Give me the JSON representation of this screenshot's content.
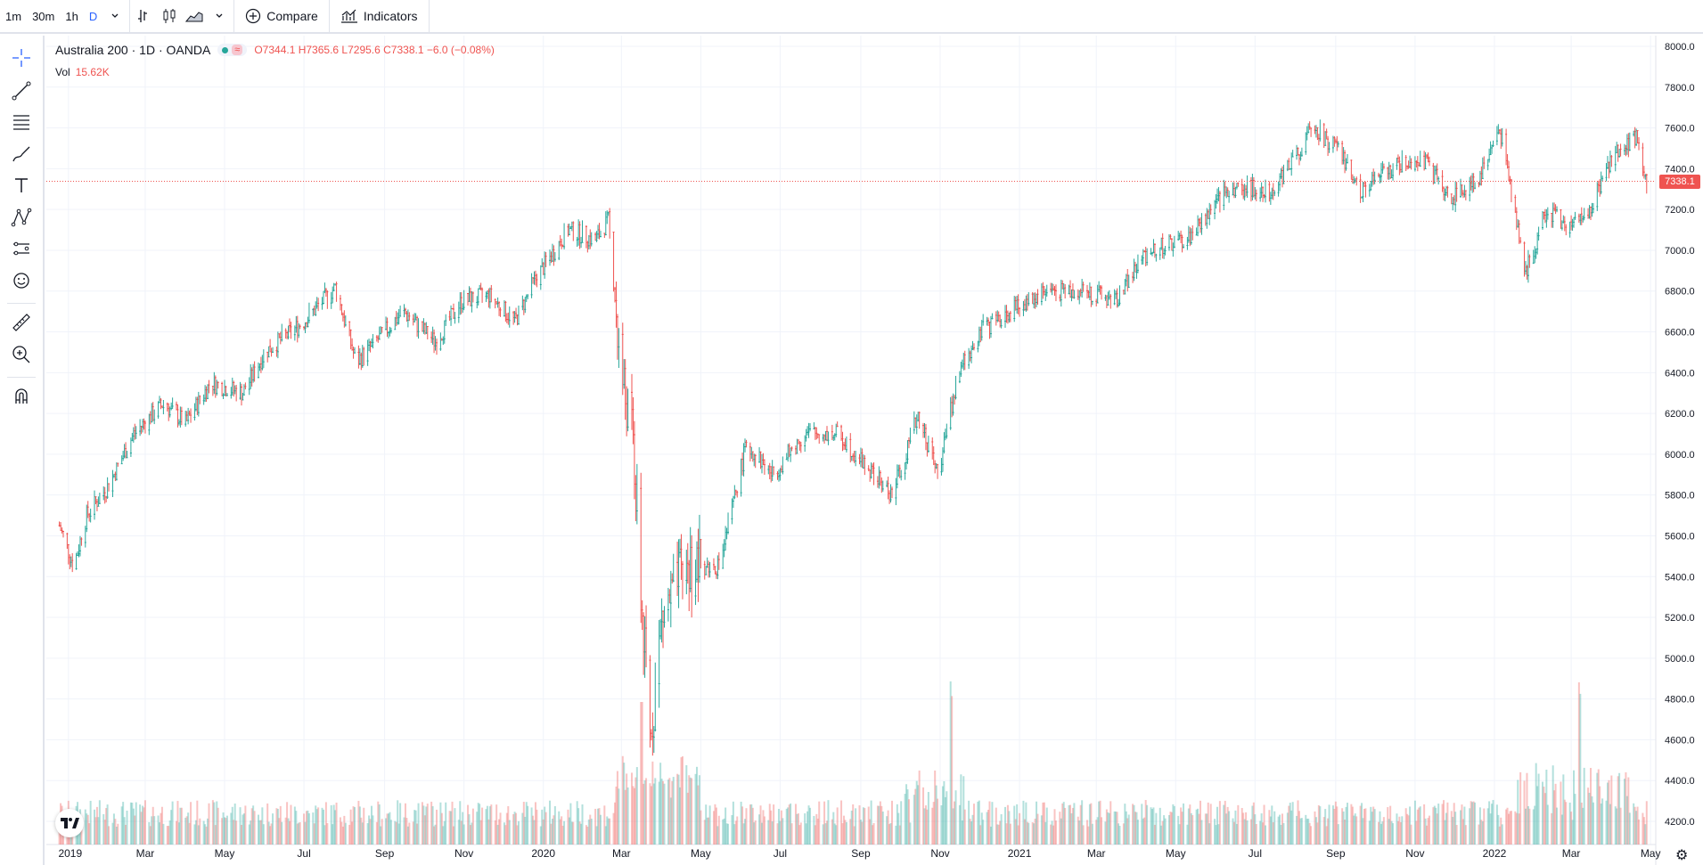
{
  "toolbar": {
    "intervals": [
      "1m",
      "30m",
      "1h",
      "D"
    ],
    "active_interval": "D",
    "compare_label": "Compare",
    "indicators_label": "Indicators"
  },
  "legend": {
    "symbol": "Australia 200 · 1D · OANDA",
    "ohlc": "O7344.1  H7365.6  L7295.6  C7338.1  −6.0 (−0.08%)",
    "vol_label": "Vol",
    "vol_value": "15.62K"
  },
  "last_price": "7338.1",
  "colors": {
    "up": "#26a69a",
    "down": "#ef5350",
    "grid": "#f0f3fa",
    "accent": "#2962ff"
  },
  "icons": [
    "crosshair-icon",
    "trend-line-icon",
    "fib-icon",
    "brush-icon",
    "text-icon",
    "pattern-icon",
    "prediction-icon",
    "emoji-icon",
    "ruler-icon",
    "zoom-icon",
    "magnet-icon"
  ],
  "chart_data": {
    "type": "candlestick",
    "title": "Australia 200 · 1D · OANDA",
    "ylim": [
      4100,
      8050
    ],
    "y_ticks": [
      "8000.0",
      "7800.0",
      "7600.0",
      "7400.0",
      "7200.0",
      "7000.0",
      "6800.0",
      "6600.0",
      "6400.0",
      "6200.0",
      "6000.0",
      "5800.0",
      "5600.0",
      "5400.0",
      "5200.0",
      "5000.0",
      "4800.0",
      "4600.0",
      "4400.0",
      "4200.0"
    ],
    "x_ticks": [
      "2019",
      "Mar",
      "May",
      "Jul",
      "Sep",
      "Nov",
      "2020",
      "Mar",
      "May",
      "Jul",
      "Sep",
      "Nov",
      "2021",
      "Mar",
      "May",
      "Jul",
      "Sep",
      "Nov",
      "2022",
      "Mar",
      "May"
    ],
    "x_tick_dates": [
      "2019-01-01",
      "2019-03-01",
      "2019-05-01",
      "2019-07-01",
      "2019-09-01",
      "2019-11-01",
      "2020-01-01",
      "2020-03-01",
      "2020-05-01",
      "2020-07-01",
      "2020-09-01",
      "2020-11-01",
      "2021-01-01",
      "2021-03-01",
      "2021-05-01",
      "2021-07-01",
      "2021-09-01",
      "2021-11-01",
      "2022-01-01",
      "2022-03-01",
      "2022-05-01"
    ],
    "close_series": [
      {
        "date": "2018-12-25",
        "value": 5650
      },
      {
        "date": "2019-01-05",
        "value": 5450
      },
      {
        "date": "2019-01-15",
        "value": 5700
      },
      {
        "date": "2019-02-01",
        "value": 5850
      },
      {
        "date": "2019-02-20",
        "value": 6100
      },
      {
        "date": "2019-03-15",
        "value": 6250
      },
      {
        "date": "2019-04-01",
        "value": 6150
      },
      {
        "date": "2019-04-20",
        "value": 6350
      },
      {
        "date": "2019-05-15",
        "value": 6300
      },
      {
        "date": "2019-06-01",
        "value": 6500
      },
      {
        "date": "2019-07-01",
        "value": 6650
      },
      {
        "date": "2019-07-25",
        "value": 6820
      },
      {
        "date": "2019-08-10",
        "value": 6450
      },
      {
        "date": "2019-08-25",
        "value": 6550
      },
      {
        "date": "2019-09-15",
        "value": 6700
      },
      {
        "date": "2019-10-10",
        "value": 6550
      },
      {
        "date": "2019-10-30",
        "value": 6750
      },
      {
        "date": "2019-11-20",
        "value": 6780
      },
      {
        "date": "2019-12-10",
        "value": 6650
      },
      {
        "date": "2019-12-25",
        "value": 6850
      },
      {
        "date": "2020-01-20",
        "value": 7100
      },
      {
        "date": "2020-02-10",
        "value": 7050
      },
      {
        "date": "2020-02-20",
        "value": 7150
      },
      {
        "date": "2020-03-01",
        "value": 6400
      },
      {
        "date": "2020-03-10",
        "value": 6050
      },
      {
        "date": "2020-03-16",
        "value": 5300
      },
      {
        "date": "2020-03-23",
        "value": 4600
      },
      {
        "date": "2020-04-01",
        "value": 5200
      },
      {
        "date": "2020-04-20",
        "value": 5450
      },
      {
        "date": "2020-05-15",
        "value": 5450
      },
      {
        "date": "2020-06-05",
        "value": 6050
      },
      {
        "date": "2020-06-25",
        "value": 5900
      },
      {
        "date": "2020-07-20",
        "value": 6100
      },
      {
        "date": "2020-08-15",
        "value": 6100
      },
      {
        "date": "2020-09-10",
        "value": 5900
      },
      {
        "date": "2020-09-25",
        "value": 5800
      },
      {
        "date": "2020-10-15",
        "value": 6200
      },
      {
        "date": "2020-10-30",
        "value": 5900
      },
      {
        "date": "2020-11-15",
        "value": 6400
      },
      {
        "date": "2020-12-01",
        "value": 6600
      },
      {
        "date": "2020-12-25",
        "value": 6700
      },
      {
        "date": "2021-01-20",
        "value": 6800
      },
      {
        "date": "2021-02-20",
        "value": 6800
      },
      {
        "date": "2021-03-15",
        "value": 6750
      },
      {
        "date": "2021-04-10",
        "value": 7000
      },
      {
        "date": "2021-05-10",
        "value": 7050
      },
      {
        "date": "2021-06-10",
        "value": 7300
      },
      {
        "date": "2021-07-15",
        "value": 7300
      },
      {
        "date": "2021-08-15",
        "value": 7600
      },
      {
        "date": "2021-09-01",
        "value": 7500
      },
      {
        "date": "2021-09-20",
        "value": 7300
      },
      {
        "date": "2021-10-15",
        "value": 7400
      },
      {
        "date": "2021-11-05",
        "value": 7450
      },
      {
        "date": "2021-11-30",
        "value": 7250
      },
      {
        "date": "2021-12-20",
        "value": 7350
      },
      {
        "date": "2022-01-05",
        "value": 7600
      },
      {
        "date": "2022-01-25",
        "value": 6900
      },
      {
        "date": "2022-02-10",
        "value": 7200
      },
      {
        "date": "2022-02-28",
        "value": 7100
      },
      {
        "date": "2022-03-15",
        "value": 7200
      },
      {
        "date": "2022-04-05",
        "value": 7500
      },
      {
        "date": "2022-04-20",
        "value": 7550
      },
      {
        "date": "2022-04-28",
        "value": 7338.1
      }
    ],
    "volume_peaks": [
      {
        "date": "2020-03-16",
        "value": "high"
      },
      {
        "date": "2020-11-09",
        "value": "peak"
      },
      {
        "date": "2022-03-07",
        "value": "peak"
      }
    ],
    "grid": true
  }
}
